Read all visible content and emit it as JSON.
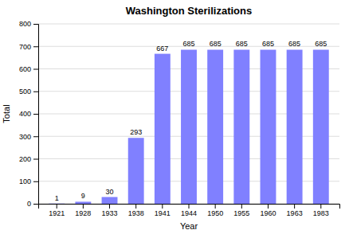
{
  "chart_data": {
    "type": "bar",
    "title": "Washington Sterilizations",
    "xlabel": "Year",
    "ylabel": "Total",
    "categories": [
      "1921",
      "1928",
      "1933",
      "1938",
      "1941",
      "1944",
      "1950",
      "1955",
      "1960",
      "1963",
      "1983"
    ],
    "values": [
      1,
      9,
      30,
      293,
      667,
      685,
      685,
      685,
      685,
      685,
      685
    ],
    "color": "#8080ff",
    "ylim": [
      0,
      800
    ],
    "yticks": [
      0,
      100,
      200,
      300,
      400,
      500,
      600,
      700,
      800
    ],
    "grid": true,
    "data_labels": true
  }
}
